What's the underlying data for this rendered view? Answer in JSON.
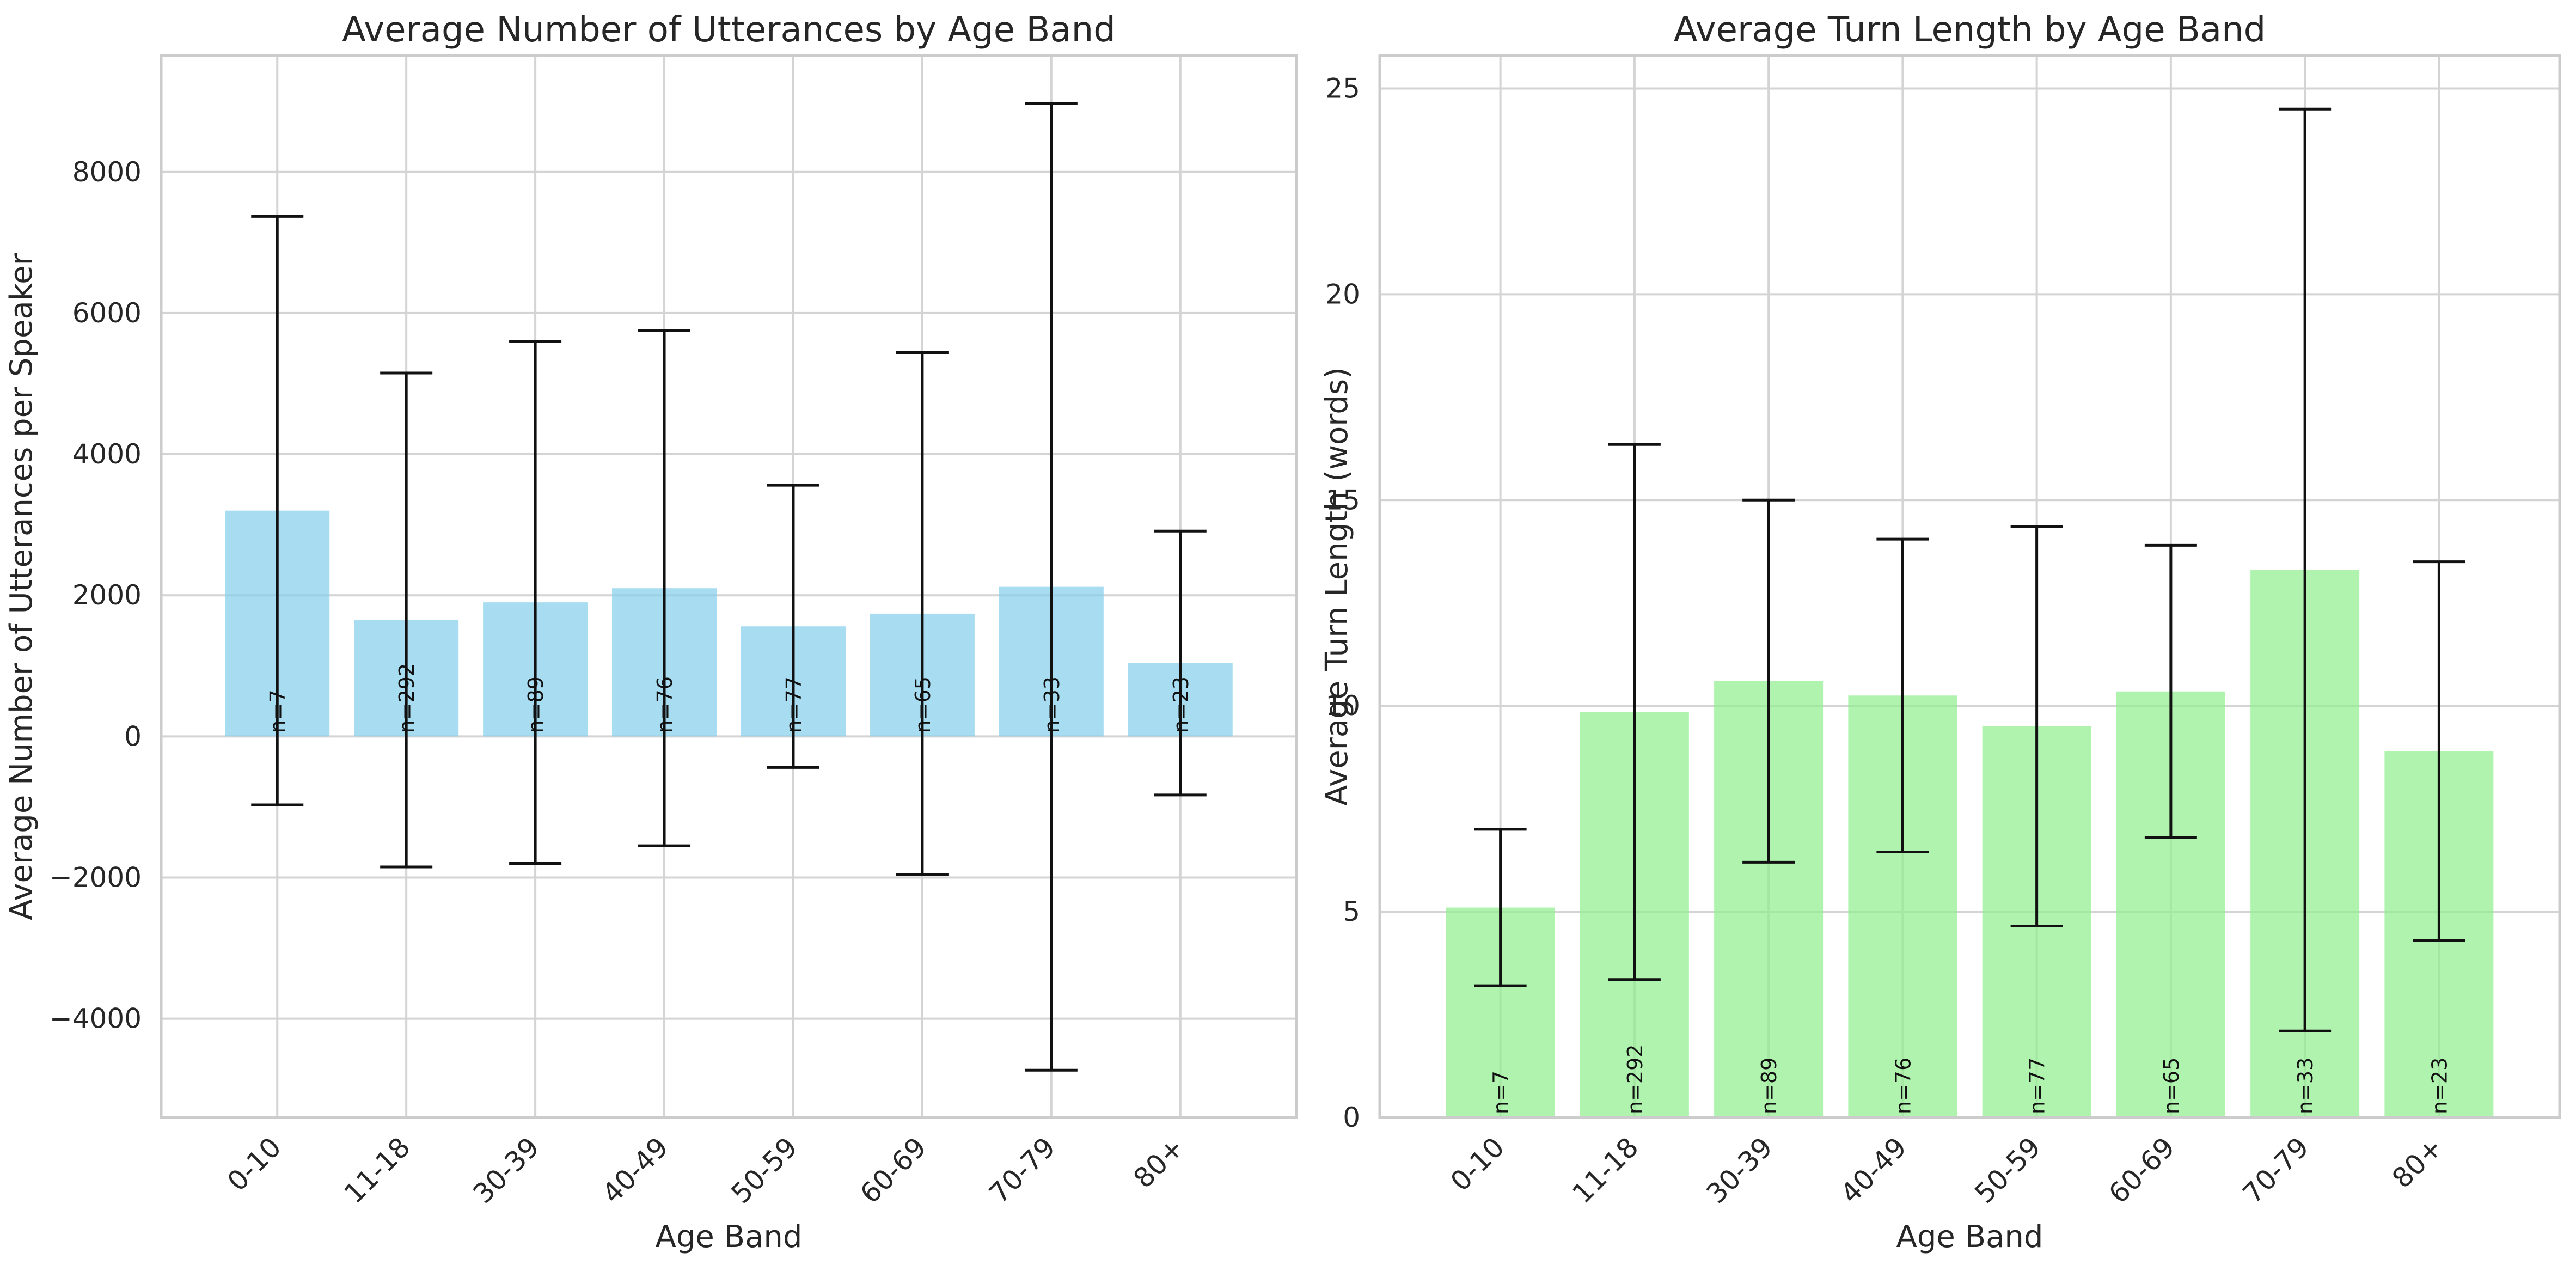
{
  "chart_data": [
    {
      "type": "bar",
      "title": "Average Number of Utterances by Age Band",
      "xlabel": "Age Band",
      "ylabel": "Average Number of Utterances per Speaker",
      "categories": [
        "0-10",
        "11-18",
        "30-39",
        "40-49",
        "50-59",
        "60-69",
        "70-79",
        "80+"
      ],
      "values": [
        3200,
        1650,
        1900,
        2100,
        1560,
        1740,
        2120,
        1040
      ],
      "error": [
        4170,
        3500,
        3700,
        3650,
        2000,
        3700,
        6850,
        1870
      ],
      "annotations": [
        "n=7",
        "n=292",
        "n=89",
        "n=76",
        "n=77",
        "n=65",
        "n=33",
        "n=23"
      ],
      "yticks": [
        -4000,
        -2000,
        0,
        2000,
        4000,
        6000,
        8000
      ],
      "yticklabels": [
        "−4000",
        "−2000",
        "0",
        "2000",
        "4000",
        "6000",
        "8000"
      ],
      "ylim": [
        -5400,
        9650
      ],
      "color": "#87CEEB",
      "grid": true
    },
    {
      "type": "bar",
      "title": "Average Turn Length by Age Band",
      "xlabel": "Age Band",
      "ylabel": "Average Turn Length (words)",
      "categories": [
        "0-10",
        "11-18",
        "30-39",
        "40-49",
        "50-59",
        "60-69",
        "70-79",
        "80+"
      ],
      "values": [
        5.1,
        9.85,
        10.6,
        10.25,
        9.5,
        10.35,
        13.3,
        8.9
      ],
      "error": [
        1.9,
        6.5,
        4.4,
        3.8,
        4.85,
        3.55,
        11.2,
        4.6
      ],
      "annotations": [
        "n=7",
        "n=292",
        "n=89",
        "n=76",
        "n=77",
        "n=65",
        "n=33",
        "n=23"
      ],
      "yticks": [
        0,
        5,
        10,
        15,
        20,
        25
      ],
      "yticklabels": [
        "0",
        "5",
        "10",
        "15",
        "20",
        "25"
      ],
      "ylim": [
        0,
        25.8
      ],
      "color": "#90EE90",
      "grid": true
    }
  ]
}
